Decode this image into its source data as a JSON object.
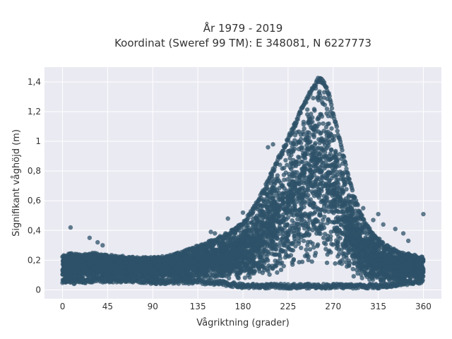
{
  "chart_data": {
    "type": "scatter",
    "title_lines": [
      "År 1979 - 2019",
      "Koordinat (Sweref 99 TM): E 348081, N 6227773"
    ],
    "xlabel": "Vågriktning (grader)",
    "ylabel": "Signifikant våghöjd (m)",
    "xlim": [
      -18,
      378
    ],
    "ylim": [
      -0.06,
      1.5
    ],
    "x_ticks": [
      0,
      45,
      90,
      135,
      180,
      225,
      270,
      315,
      360
    ],
    "x_tick_labels": [
      "0",
      "45",
      "90",
      "135",
      "180",
      "225",
      "270",
      "315",
      "360"
    ],
    "y_ticks": [
      0,
      0.2,
      0.4,
      0.6,
      0.8,
      1,
      1.2,
      1.4
    ],
    "y_tick_labels": [
      "0",
      "0,2",
      "0,4",
      "0,6",
      "0,8",
      "1",
      "1,2",
      "1,4"
    ],
    "grid": true,
    "marker_color": "#2e5268",
    "plot_bg": "#eaeaf2",
    "envelope": {
      "x": [
        0,
        10,
        20,
        30,
        45,
        60,
        75,
        90,
        105,
        120,
        135,
        150,
        160,
        170,
        180,
        190,
        200,
        210,
        220,
        230,
        240,
        250,
        255,
        260,
        265,
        270,
        280,
        290,
        300,
        310,
        320,
        330,
        340,
        350,
        360
      ],
      "upper": [
        0.23,
        0.25,
        0.24,
        0.25,
        0.24,
        0.23,
        0.22,
        0.22,
        0.23,
        0.26,
        0.3,
        0.34,
        0.37,
        0.41,
        0.46,
        0.55,
        0.67,
        0.82,
        0.96,
        1.1,
        1.25,
        1.38,
        1.43,
        1.42,
        1.35,
        1.2,
        0.92,
        0.65,
        0.48,
        0.38,
        0.32,
        0.28,
        0.25,
        0.24,
        0.22
      ],
      "lower": [
        0.04,
        0.04,
        0.04,
        0.05,
        0.05,
        0.05,
        0.05,
        0.04,
        0.04,
        0.04,
        0.04,
        0.03,
        0.03,
        0.02,
        0.01,
        0.01,
        0.01,
        0.01,
        0.01,
        0.01,
        0.01,
        0.01,
        0.01,
        0.01,
        0.01,
        0.01,
        0.01,
        0.01,
        0.01,
        0.01,
        0.01,
        0.02,
        0.03,
        0.04,
        0.04
      ]
    },
    "outliers": {
      "x": [
        8,
        27,
        35,
        40,
        148,
        152,
        165,
        180,
        190,
        205,
        210,
        300,
        310,
        315,
        320,
        332,
        340,
        345,
        360
      ],
      "y": [
        0.42,
        0.35,
        0.32,
        0.3,
        0.39,
        0.38,
        0.48,
        0.52,
        0.55,
        0.96,
        0.98,
        0.55,
        0.47,
        0.51,
        0.44,
        0.41,
        0.38,
        0.33,
        0.51
      ]
    }
  }
}
